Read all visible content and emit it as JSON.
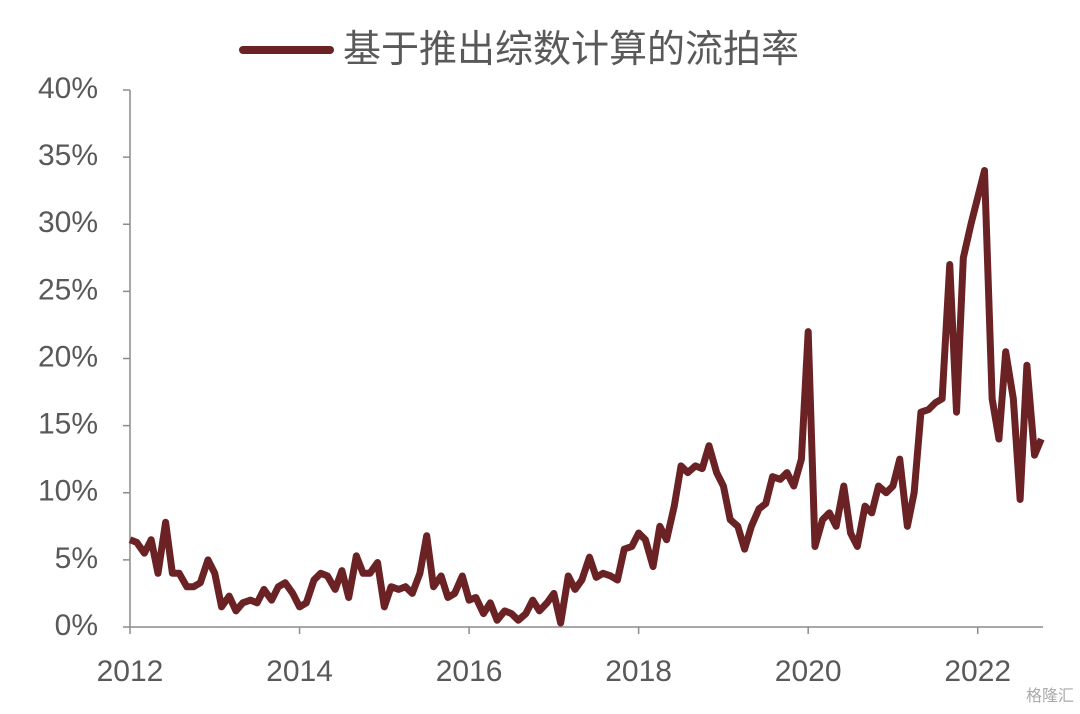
{
  "chart_data": {
    "type": "line",
    "series": [
      {
        "name": "基于推出综数计算的流拍率",
        "color": "#6b2224",
        "values": [
          6.5,
          6.3,
          5.5,
          6.5,
          4,
          7.8,
          4,
          4,
          3,
          3,
          3.3,
          5,
          4,
          1.5,
          2.3,
          1.2,
          1.8,
          2,
          1.8,
          2.8,
          2,
          3,
          3.3,
          2.5,
          1.5,
          1.8,
          3.5,
          4,
          3.8,
          2.8,
          4.2,
          2.2,
          5.3,
          4,
          4,
          4.8,
          1.5,
          3,
          2.8,
          3,
          2.5,
          4,
          6.8,
          3,
          3.8,
          2.2,
          2.5,
          3.8,
          2,
          2.2,
          1,
          1.8,
          0.5,
          1.2,
          1,
          0.5,
          1,
          2,
          1.2,
          1.8,
          2.5,
          0.3,
          3.8,
          2.8,
          3.5,
          5.2,
          3.7,
          4,
          3.8,
          3.5,
          5.8,
          6,
          7,
          6.5,
          4.5,
          7.5,
          6.5,
          9,
          12,
          11.5,
          12,
          11.8,
          13.5,
          11.5,
          10.5,
          8,
          7.5,
          5.8,
          7.5,
          8.8,
          9.2,
          11.2,
          11,
          11.5,
          10.5,
          12.5,
          22,
          6,
          8,
          8.5,
          7.5,
          10.5,
          7,
          6,
          9,
          8.5,
          10.5,
          10,
          10.5,
          12.5,
          7.5,
          10,
          16,
          16.2,
          16.7,
          17,
          27,
          16,
          27.5,
          30,
          34,
          17,
          14,
          20.5,
          17,
          9.5,
          19.5,
          12.8,
          14
        ]
      }
    ],
    "x": [
      2012,
      2012.08,
      2012.17,
      2012.25,
      2012.33,
      2012.42,
      2012.5,
      2012.58,
      2012.67,
      2012.75,
      2012.83,
      2012.92,
      2013,
      2013.08,
      2013.17,
      2013.25,
      2013.33,
      2013.42,
      2013.5,
      2013.58,
      2013.67,
      2013.75,
      2013.83,
      2013.92,
      2014,
      2014.08,
      2014.17,
      2014.25,
      2014.33,
      2014.42,
      2014.5,
      2014.58,
      2014.67,
      2014.75,
      2014.83,
      2014.92,
      2015,
      2015.08,
      2015.17,
      2015.25,
      2015.33,
      2015.42,
      2015.5,
      2015.58,
      2015.67,
      2015.75,
      2015.83,
      2015.92,
      2016,
      2016.08,
      2016.17,
      2016.25,
      2016.33,
      2016.42,
      2016.5,
      2016.58,
      2016.67,
      2016.75,
      2016.83,
      2016.92,
      2017,
      2017.08,
      2017.17,
      2017.25,
      2017.33,
      2017.42,
      2017.5,
      2017.58,
      2017.67,
      2017.75,
      2017.83,
      2017.92,
      2018,
      2018.08,
      2018.17,
      2018.25,
      2018.33,
      2018.42,
      2018.5,
      2018.58,
      2018.67,
      2018.75,
      2018.83,
      2018.92,
      2019,
      2019.08,
      2019.17,
      2019.25,
      2019.33,
      2019.42,
      2019.5,
      2019.58,
      2019.67,
      2019.75,
      2019.83,
      2019.92,
      2020,
      2020.08,
      2020.17,
      2020.25,
      2020.33,
      2020.42,
      2020.5,
      2020.58,
      2020.67,
      2020.75,
      2020.83,
      2020.92,
      2021,
      2021.08,
      2021.17,
      2021.25,
      2021.33,
      2021.42,
      2021.5,
      2021.58,
      2021.67,
      2021.75,
      2021.83,
      2021.92,
      2022.08,
      2022.17,
      2022.25,
      2022.33,
      2022.42,
      2022.5,
      2022.58,
      2022.67,
      2022.75
    ],
    "xlim": [
      2012,
      2022.77
    ],
    "xticks": [
      2012,
      2014,
      2016,
      2018,
      2020,
      2022
    ],
    "ylim": [
      0,
      40
    ],
    "yticks": [
      {
        "value": 0,
        "label": "0%"
      },
      {
        "value": 5,
        "label": "5%"
      },
      {
        "value": 10,
        "label": "10%"
      },
      {
        "value": 15,
        "label": "15%"
      },
      {
        "value": 20,
        "label": "20%"
      },
      {
        "value": 25,
        "label": "25%"
      },
      {
        "value": 30,
        "label": "30%"
      },
      {
        "value": 35,
        "label": "35%"
      },
      {
        "value": 40,
        "label": "40%"
      }
    ],
    "legend": "top",
    "watermark": "格隆汇"
  }
}
